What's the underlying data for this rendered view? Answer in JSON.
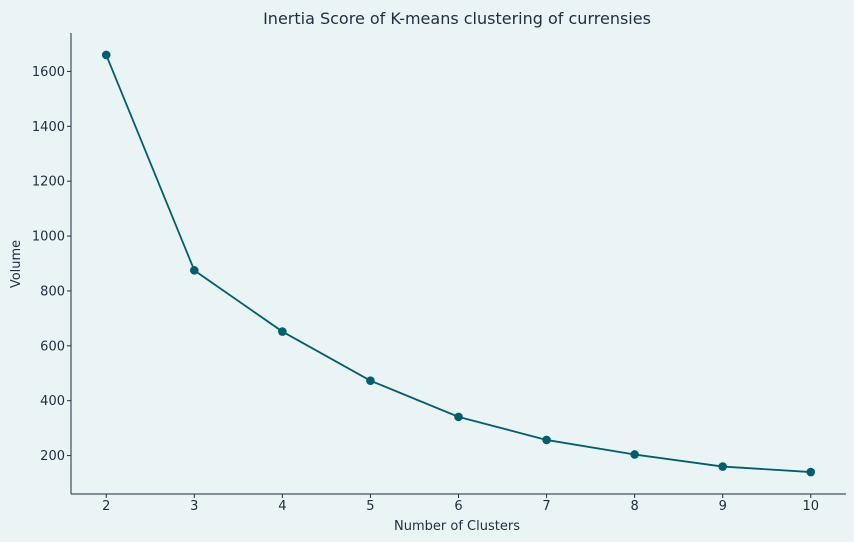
{
  "chart_data": {
    "type": "line",
    "title": "Inertia Score of K-means clustering of currensies",
    "xlabel": "Number of Clusters",
    "ylabel": "Volume",
    "grid": false,
    "xlim": [
      1.6,
      10.4
    ],
    "ylim": [
      60,
      1740
    ],
    "x_ticks": [
      2,
      3,
      4,
      5,
      6,
      7,
      8,
      9,
      10
    ],
    "y_ticks": [
      200,
      400,
      600,
      800,
      1000,
      1200,
      1400,
      1600
    ],
    "series": [
      {
        "x": [
          2,
          3,
          4,
          5,
          6,
          7,
          8,
          9,
          10
        ],
        "values": [
          1660,
          875,
          652,
          473,
          341,
          257,
          204,
          160,
          140
        ],
        "color": "#005f6e",
        "marker": "circle"
      }
    ]
  }
}
